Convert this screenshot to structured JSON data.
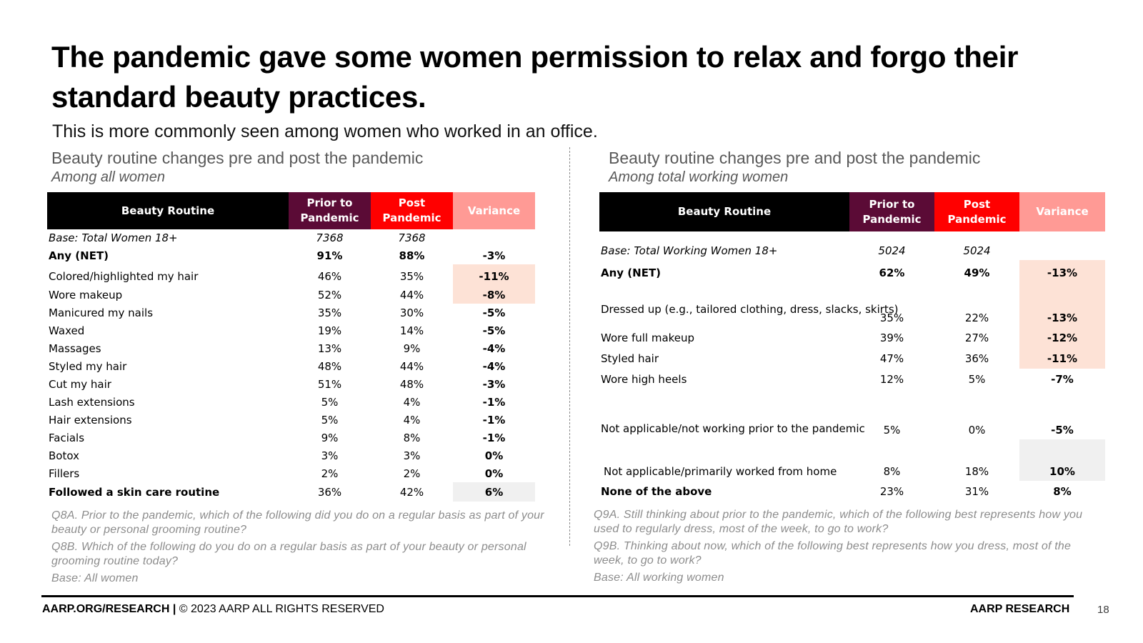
{
  "title": "The pandemic gave some women permission to relax and forgo their standard beauty practices.",
  "subtitle": "This is more commonly seen among women who worked in an office.",
  "left": {
    "heading": "Beauty routine changes pre and post the pandemic",
    "subheading": "Among all women",
    "headers": {
      "routine": "Beauty Routine",
      "prior": "Prior to Pandemic",
      "post": "Post Pandemic",
      "variance": "Variance"
    },
    "base": {
      "label": "Base: Total Women 18+",
      "prior": "7368",
      "post": "7368"
    },
    "rows": [
      {
        "label": "Any (NET)",
        "prior": "91%",
        "post": "88%",
        "variance": "-3%"
      },
      {
        "label": "Colored/highlighted my hair",
        "prior": "46%",
        "post": "35%",
        "variance": "-11%"
      },
      {
        "label": "Wore makeup",
        "prior": "52%",
        "post": "44%",
        "variance": "-8%"
      },
      {
        "label": "Manicured my nails",
        "prior": "35%",
        "post": "30%",
        "variance": "-5%"
      },
      {
        "label": "Waxed",
        "prior": "19%",
        "post": "14%",
        "variance": "-5%"
      },
      {
        "label": "Massages",
        "prior": "13%",
        "post": "9%",
        "variance": "-4%"
      },
      {
        "label": "Styled my hair",
        "prior": "48%",
        "post": "44%",
        "variance": "-4%"
      },
      {
        "label": "Cut my hair",
        "prior": "51%",
        "post": "48%",
        "variance": "-3%"
      },
      {
        "label": "Lash extensions",
        "prior": "5%",
        "post": "4%",
        "variance": "-1%"
      },
      {
        "label": "Hair extensions",
        "prior": "5%",
        "post": "4%",
        "variance": "-1%"
      },
      {
        "label": "Facials",
        "prior": "9%",
        "post": "8%",
        "variance": "-1%"
      },
      {
        "label": "Botox",
        "prior": "3%",
        "post": "3%",
        "variance": "0%"
      },
      {
        "label": "Fillers",
        "prior": "2%",
        "post": "2%",
        "variance": "0%"
      },
      {
        "label": "Followed a skin care routine",
        "prior": "36%",
        "post": "42%",
        "variance": "6%"
      }
    ],
    "notes": [
      "Q8A. Prior to the pandemic, which of the following did you do on a regular basis as part of your beauty or personal grooming routine?",
      "Q8B. Which of the following do you do on a regular basis as part of your beauty or personal grooming routine today?",
      "Base: All women"
    ]
  },
  "right": {
    "heading": "Beauty routine changes pre and post the pandemic",
    "subheading": "Among total working women",
    "headers": {
      "routine": "Beauty Routine",
      "prior": "Prior to Pandemic",
      "post": "Post Pandemic",
      "variance": "Variance"
    },
    "base": {
      "label": "Base: Total Working Women 18+",
      "prior": "5024",
      "post": "5024"
    },
    "rows": [
      {
        "label": "Any (NET)",
        "prior": "62%",
        "post": "49%",
        "variance": "-13%"
      },
      {
        "label": "Dressed up (e.g., tailored clothing, dress, slacks, skirts)",
        "prior": "35%",
        "post": "22%",
        "variance": "-13%"
      },
      {
        "label": "Wore full makeup",
        "prior": "39%",
        "post": "27%",
        "variance": "-12%"
      },
      {
        "label": "Styled hair",
        "prior": "47%",
        "post": "36%",
        "variance": "-11%"
      },
      {
        "label": "Wore high heels",
        "prior": "12%",
        "post": "5%",
        "variance": "-7%"
      },
      {
        "label": "Not applicable/not working prior to the pandemic",
        "prior": "5%",
        "post": "0%",
        "variance": "-5%"
      },
      {
        "label": "Not applicable/primarily worked from home",
        "prior": "8%",
        "post": "18%",
        "variance": "10%"
      },
      {
        "label": "None of the above",
        "prior": "23%",
        "post": "31%",
        "variance": "8%"
      }
    ],
    "notes": [
      "Q9A. Still thinking about prior to the pandemic, which of the following best represents how you used to regularly dress, most of the week, to go to work?",
      "Q9B. Thinking about now, which of the following best represents how you dress, most of the week, to go to work?",
      "Base: All working women"
    ]
  },
  "footer": {
    "left_bold": "AARP.ORG/RESEARCH |",
    "left_text": "© 2023 AARP ALL RIGHTS RESERVED",
    "right": "AARP RESEARCH",
    "page": "18"
  }
}
